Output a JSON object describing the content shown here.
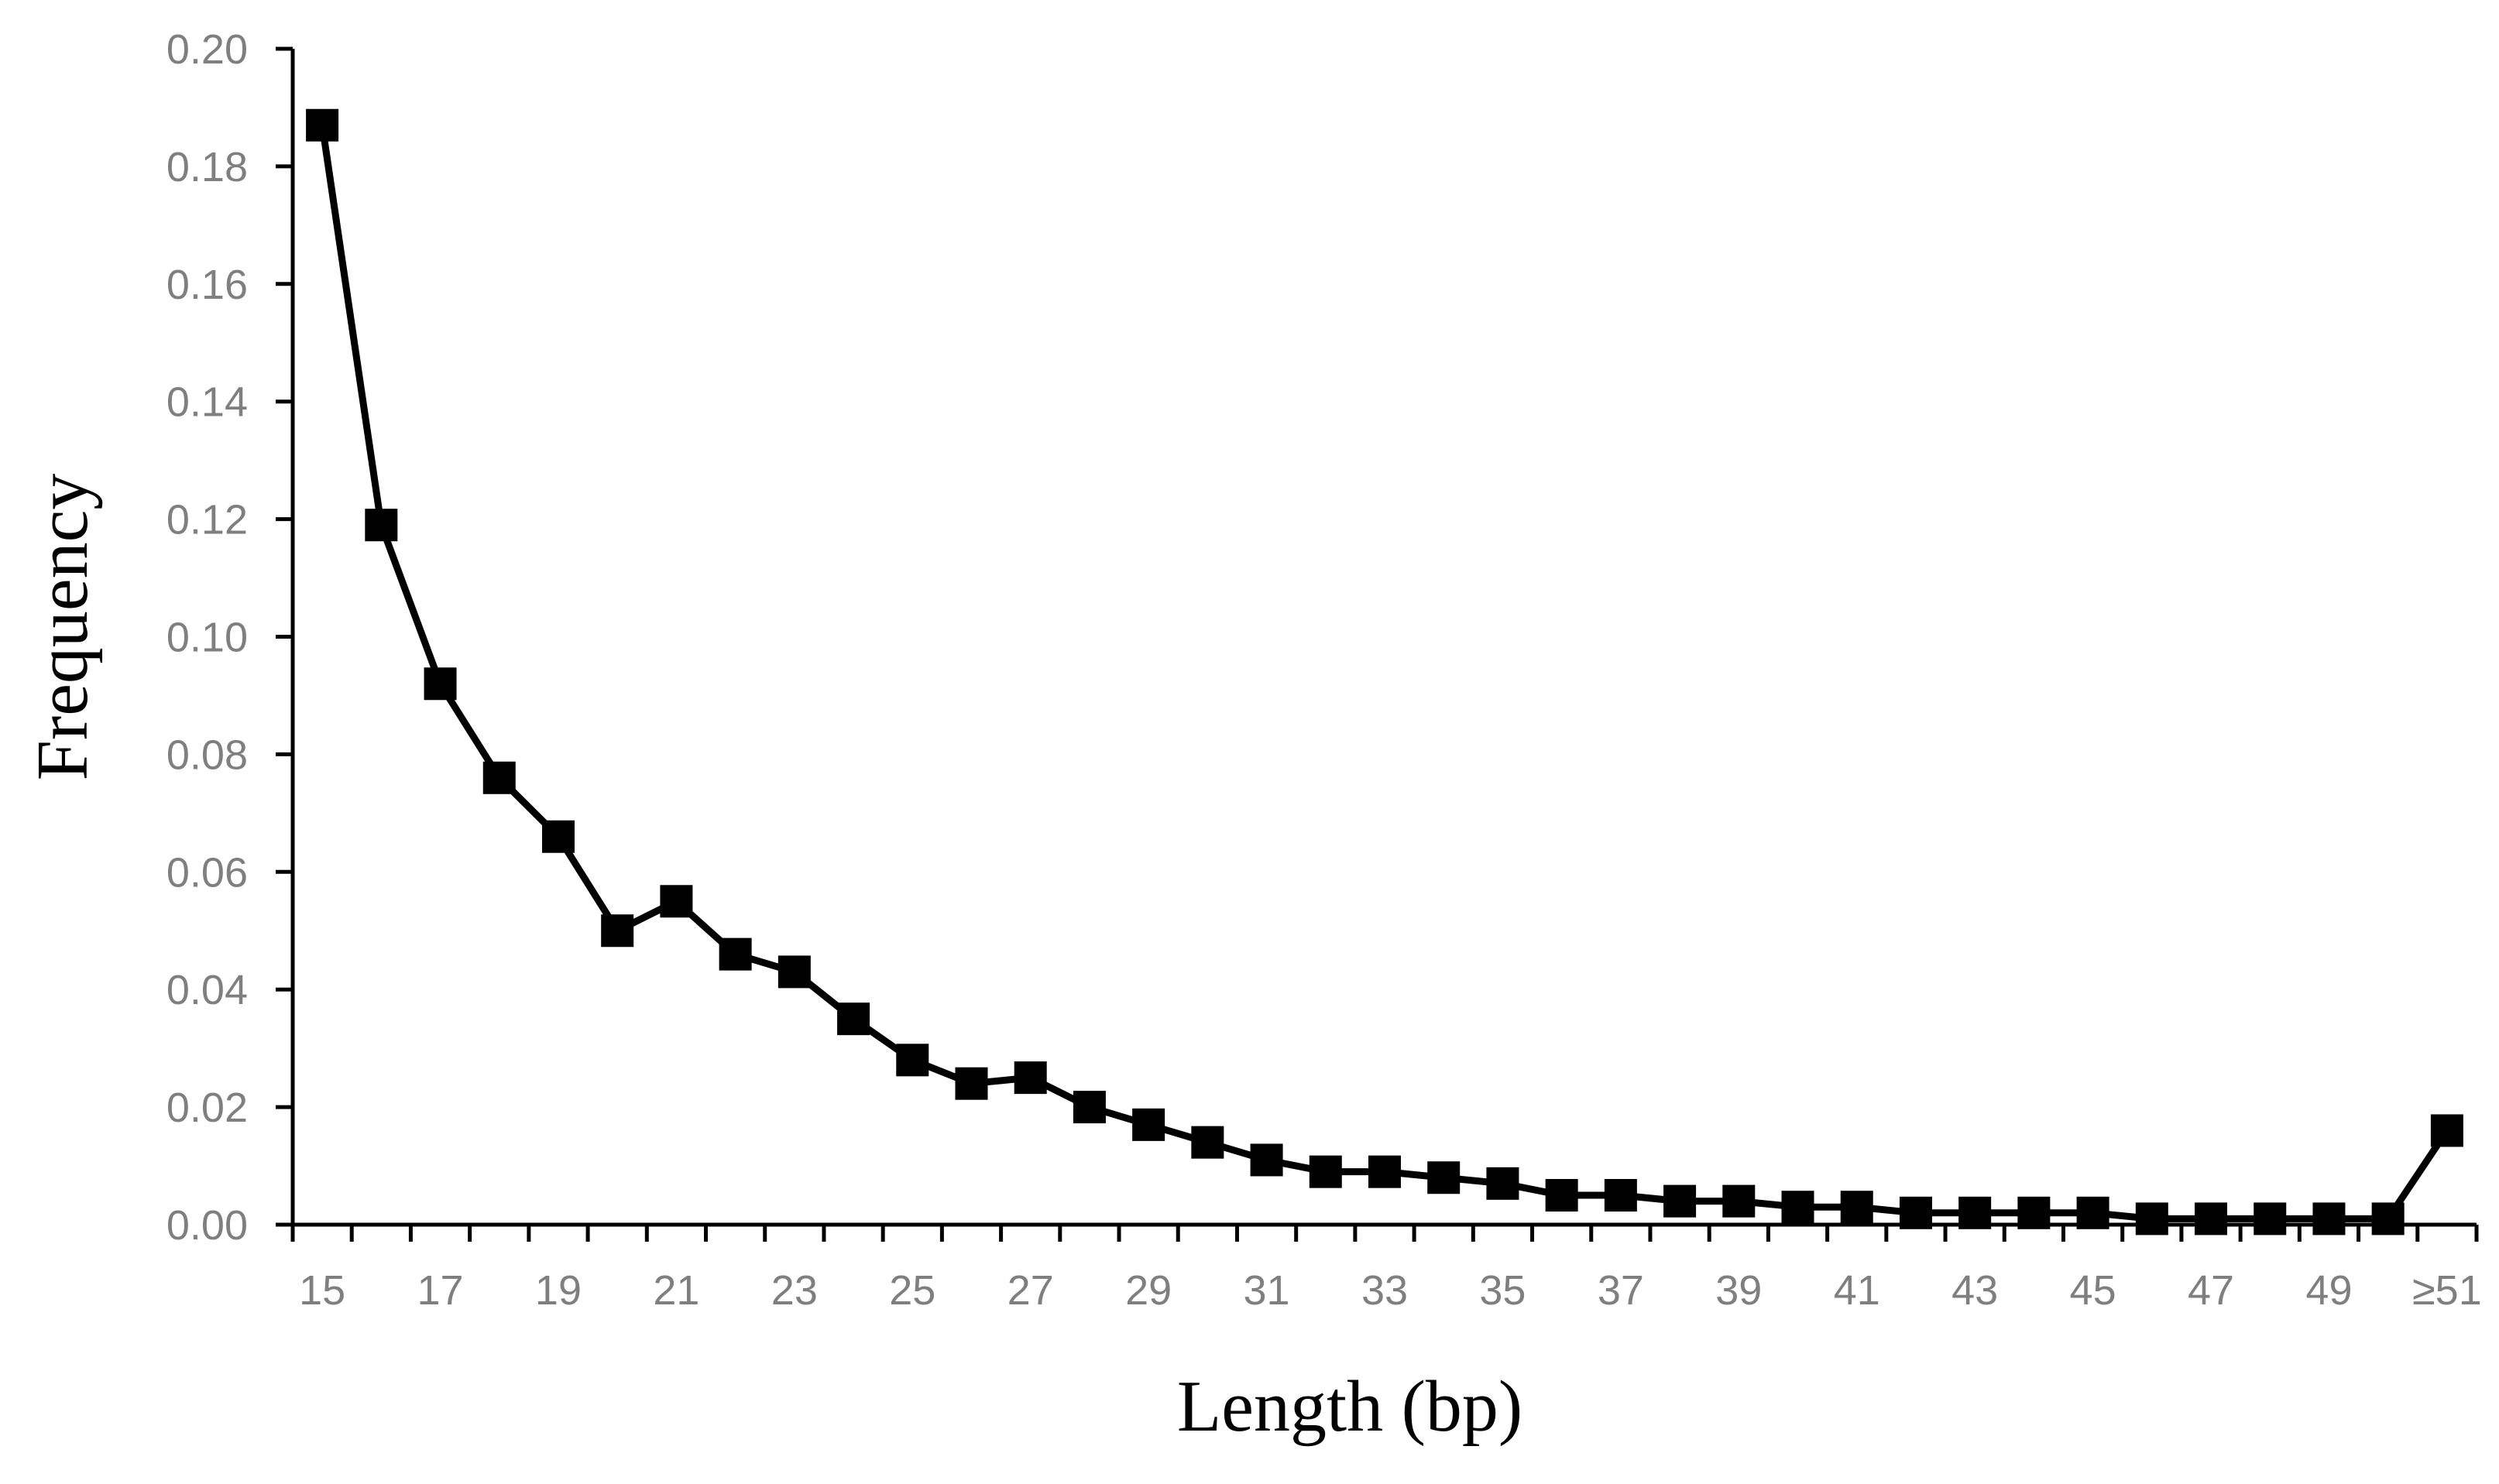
{
  "chart_data": {
    "type": "line",
    "title": "",
    "xlabel": "Length (bp)",
    "ylabel": "Frequency",
    "ylim": [
      0,
      0.2
    ],
    "yticks": [
      "0.00",
      "0.02",
      "0.04",
      "0.06",
      "0.08",
      "0.10",
      "0.12",
      "0.14",
      "0.16",
      "0.18",
      "0.20"
    ],
    "categories": [
      "15",
      "16",
      "17",
      "18",
      "19",
      "20",
      "21",
      "22",
      "23",
      "24",
      "25",
      "26",
      "27",
      "28",
      "29",
      "30",
      "31",
      "32",
      "33",
      "34",
      "35",
      "36",
      "37",
      "38",
      "39",
      "40",
      "41",
      "42",
      "43",
      "44",
      "45",
      "46",
      "47",
      "48",
      "49",
      "50",
      "≥51"
    ],
    "xtick_labels": [
      "15",
      "",
      "17",
      "",
      "19",
      "",
      "21",
      "",
      "23",
      "",
      "25",
      "",
      "27",
      "",
      "29",
      "",
      "31",
      "",
      "33",
      "",
      "35",
      "",
      "37",
      "",
      "39",
      "",
      "41",
      "",
      "43",
      "",
      "45",
      "",
      "47",
      "",
      "49",
      "",
      "≥51"
    ],
    "series": [
      {
        "values": [
          0.187,
          0.119,
          0.092,
          0.076,
          0.066,
          0.05,
          0.055,
          0.046,
          0.043,
          0.035,
          0.028,
          0.024,
          0.025,
          0.02,
          0.017,
          0.014,
          0.011,
          0.009,
          0.009,
          0.008,
          0.007,
          0.005,
          0.005,
          0.004,
          0.004,
          0.003,
          0.003,
          0.002,
          0.002,
          0.002,
          0.002,
          0.001,
          0.001,
          0.001,
          0.001,
          0.001,
          0.016
        ]
      }
    ],
    "grid": false,
    "legend": "none",
    "colors": {
      "line": "#000000",
      "marker": "#000000",
      "tick_label": "#7f7f7f",
      "axis": "#000000"
    },
    "marker": "square"
  }
}
